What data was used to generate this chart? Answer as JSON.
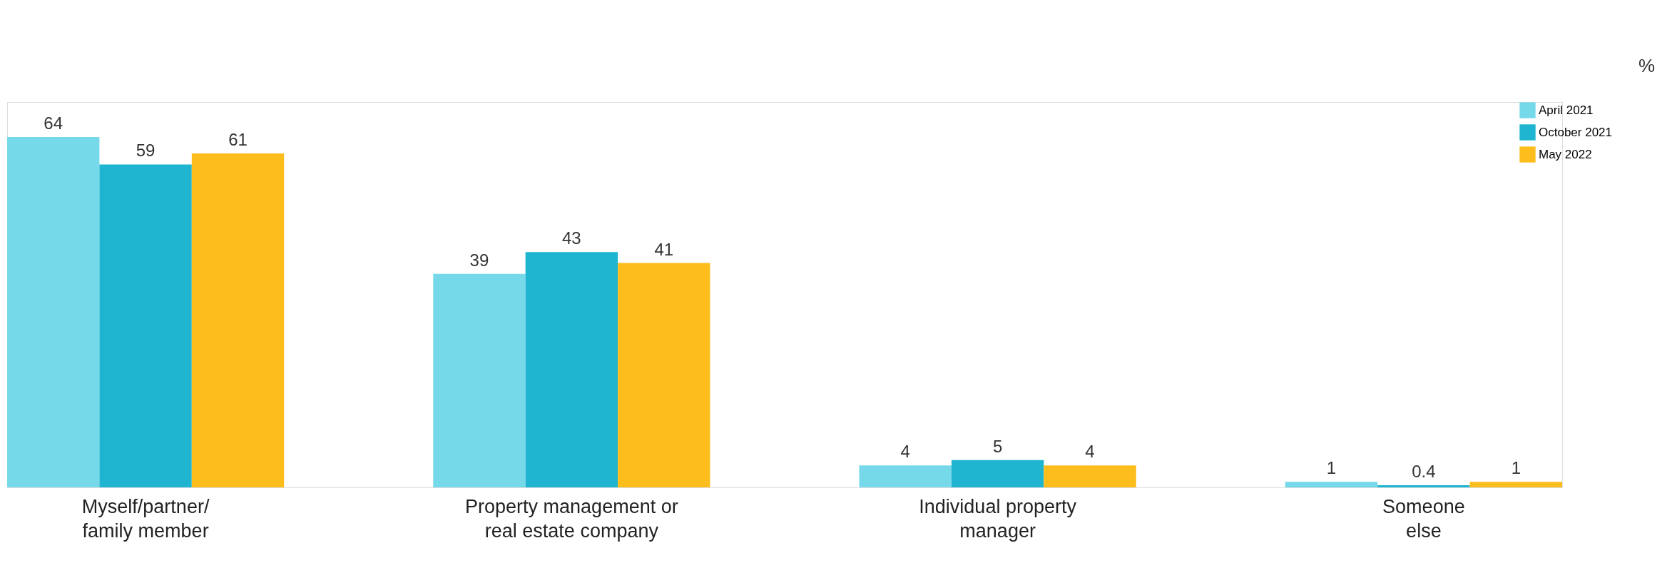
{
  "chart_data": {
    "type": "bar",
    "categories": [
      "Myself/partner/\nfamily member",
      "Property management or\nreal estate company",
      "Individual property\nmanager",
      "Someone\nelse"
    ],
    "series": [
      {
        "name": "April 2021",
        "color": "#76d9ea",
        "values": [
          64,
          39,
          4,
          1
        ]
      },
      {
        "name": "October 2021",
        "color": "#1fb5d0",
        "values": [
          59,
          43,
          5,
          0.4
        ]
      },
      {
        "name": "May 2022",
        "color": "#fdbd1d",
        "values": [
          61,
          41,
          4,
          1
        ]
      }
    ],
    "annotations": [
      "%"
    ],
    "data_labels": true,
    "legend": "right",
    "grid": false,
    "tick_labels": "x"
  }
}
